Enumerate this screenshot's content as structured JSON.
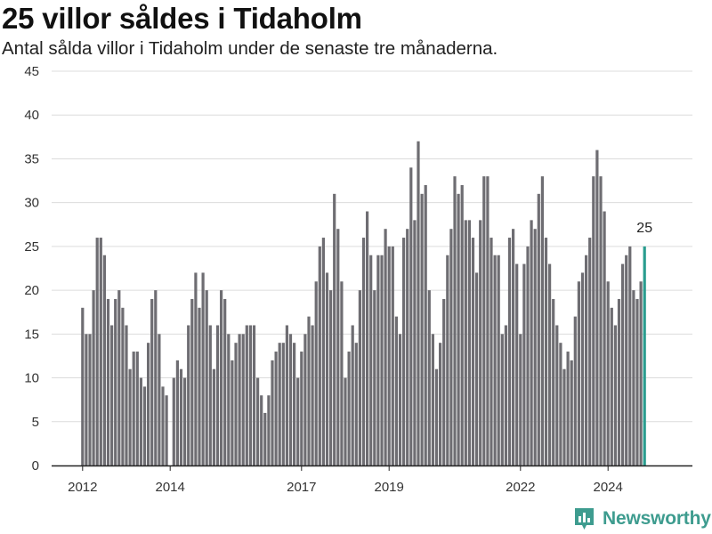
{
  "title": "25 villor såldes i Tidaholm",
  "subtitle": "Antal sålda villor i Tidaholm under de senaste tre månaderna.",
  "brand": {
    "name": "Newsworthy",
    "icon": "newsworthy-logo-icon",
    "color": "#3e9c8f"
  },
  "chart_data": {
    "type": "bar",
    "title": "",
    "xlabel": "",
    "ylabel": "",
    "ylim": [
      0,
      45
    ],
    "y_ticks": [
      0,
      5,
      10,
      15,
      20,
      25,
      30,
      35,
      40,
      45
    ],
    "x_ticks": [
      {
        "label": "2012",
        "year": 2012
      },
      {
        "label": "2014",
        "year": 2014
      },
      {
        "label": "2017",
        "year": 2017
      },
      {
        "label": "2019",
        "year": 2019
      },
      {
        "label": "2022",
        "year": 2022
      },
      {
        "label": "2024",
        "year": 2024
      }
    ],
    "start_month": "2012-01",
    "grid": true,
    "bar_color": "#6e6d72",
    "highlight_color": "#2a9d8f",
    "highlight_label": "25",
    "values": [
      18,
      15,
      15,
      20,
      26,
      26,
      24,
      19,
      16,
      19,
      20,
      18,
      16,
      11,
      13,
      13,
      10,
      9,
      14,
      19,
      20,
      15,
      9,
      8,
      null,
      10,
      12,
      11,
      10,
      16,
      19,
      22,
      18,
      22,
      20,
      16,
      11,
      16,
      20,
      19,
      15,
      12,
      14,
      15,
      15,
      16,
      16,
      16,
      10,
      8,
      6,
      8,
      12,
      13,
      14,
      14,
      16,
      15,
      14,
      10,
      13,
      15,
      17,
      16,
      21,
      25,
      26,
      22,
      20,
      31,
      27,
      21,
      10,
      13,
      16,
      14,
      20,
      26,
      29,
      24,
      20,
      24,
      24,
      27,
      25,
      25,
      17,
      15,
      26,
      27,
      34,
      28,
      37,
      31,
      32,
      20,
      15,
      11,
      14,
      19,
      24,
      27,
      33,
      31,
      32,
      28,
      28,
      26,
      22,
      28,
      33,
      33,
      26,
      24,
      24,
      15,
      16,
      26,
      27,
      23,
      15,
      23,
      25,
      28,
      27,
      31,
      33,
      26,
      23,
      19,
      16,
      14,
      11,
      13,
      12,
      17,
      21,
      22,
      24,
      26,
      33,
      36,
      33,
      29,
      21,
      18,
      16,
      19,
      23,
      24,
      25,
      20,
      19,
      21,
      25
    ]
  }
}
